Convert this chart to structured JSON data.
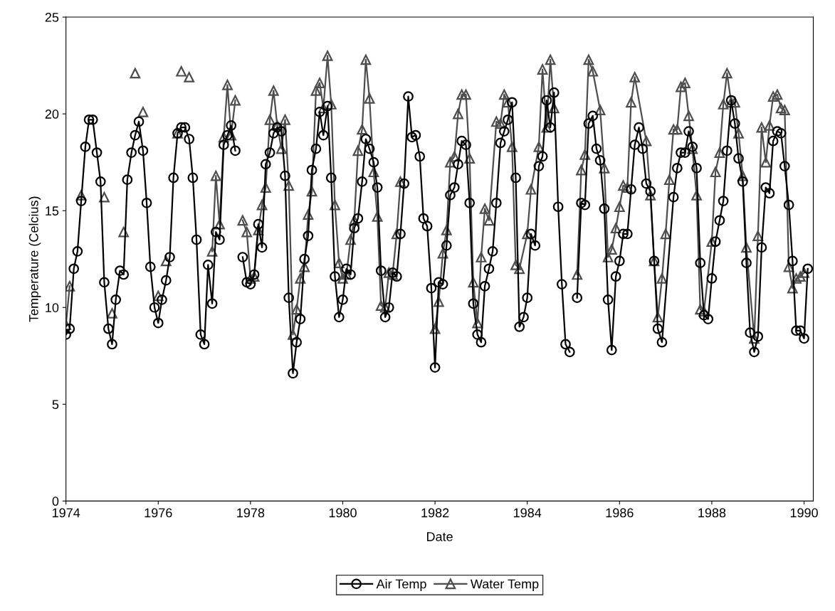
{
  "chart_data": {
    "type": "line",
    "xlabel": "Date",
    "ylabel": "Temperature (Celcius)",
    "xlim": [
      1974,
      1990.2
    ],
    "xticks": [
      1974,
      1976,
      1978,
      1980,
      1982,
      1984,
      1986,
      1988,
      1990
    ],
    "ylim": [
      0,
      25
    ],
    "yticks": [
      0,
      5,
      10,
      15,
      20,
      25
    ],
    "grid": false,
    "legend": "bottom",
    "series": [
      {
        "name": "Air Temp",
        "color": "#000000",
        "marker": "circle",
        "x": [
          1974.0,
          1974.08,
          1974.17,
          1974.25,
          1974.33,
          1974.42,
          1974.5,
          1974.58,
          1974.67,
          1974.75,
          1974.83,
          1974.92,
          1975.0,
          1975.08,
          1975.17,
          1975.25,
          1975.33,
          1975.42,
          1975.5,
          1975.58,
          1975.67,
          1975.75,
          1975.83,
          1975.92,
          1976.0,
          1976.08,
          1976.17,
          1976.25,
          1976.33,
          1976.42,
          1976.5,
          1976.58,
          1976.67,
          1976.75,
          1976.83,
          1976.92,
          1977.0,
          1977.08,
          1977.17,
          1977.25,
          1977.33,
          1977.42,
          1977.5,
          1977.58,
          1977.67,
          1977.75,
          1977.83,
          1977.92,
          1978.0,
          1978.08,
          1978.17,
          1978.25,
          1978.33,
          1978.42,
          1978.5,
          1978.58,
          1978.67,
          1978.75,
          1978.83,
          1978.92,
          1979.0,
          1979.08,
          1979.17,
          1979.25,
          1979.33,
          1979.42,
          1979.5,
          1979.58,
          1979.67,
          1979.75,
          1979.83,
          1979.92,
          1980.0,
          1980.08,
          1980.17,
          1980.25,
          1980.33,
          1980.42,
          1980.5,
          1980.58,
          1980.67,
          1980.75,
          1980.83,
          1980.92,
          1981.0,
          1981.08,
          1981.17,
          1981.25,
          1981.33,
          1981.42,
          1981.5,
          1981.58,
          1981.67,
          1981.75,
          1981.83,
          1981.92,
          1982.0,
          1982.08,
          1982.17,
          1982.25,
          1982.33,
          1982.42,
          1982.5,
          1982.58,
          1982.67,
          1982.75,
          1982.83,
          1982.92,
          1983.0,
          1983.08,
          1983.17,
          1983.25,
          1983.33,
          1983.42,
          1983.5,
          1983.58,
          1983.67,
          1983.75,
          1983.83,
          1983.92,
          1984.0,
          1984.08,
          1984.17,
          1984.25,
          1984.33,
          1984.42,
          1984.5,
          1984.58,
          1984.67,
          1984.75,
          1984.83,
          1984.92,
          1985.0,
          1985.08,
          1985.17,
          1985.25,
          1985.33,
          1985.42,
          1985.5,
          1985.58,
          1985.67,
          1985.75,
          1985.83,
          1985.92,
          1986.0,
          1986.08,
          1986.17,
          1986.25,
          1986.33,
          1986.42,
          1986.5,
          1986.58,
          1986.67,
          1986.75,
          1986.83,
          1986.92,
          1987.17,
          1987.25,
          1987.33,
          1987.42,
          1987.5,
          1987.58,
          1987.67,
          1987.75,
          1987.83,
          1987.92,
          1988.0,
          1988.08,
          1988.17,
          1988.25,
          1988.33,
          1988.42,
          1988.5,
          1988.58,
          1988.67,
          1988.75,
          1988.83,
          1988.92,
          1989.0,
          1989.08,
          1989.17,
          1989.25,
          1989.33,
          1989.42,
          1989.5,
          1989.58,
          1989.67,
          1989.75,
          1989.83,
          1989.92,
          1990.0,
          1990.08
        ],
        "values": [
          8.6,
          8.9,
          12.0,
          12.9,
          15.5,
          18.3,
          19.7,
          19.7,
          18.0,
          16.5,
          11.3,
          8.9,
          8.1,
          10.4,
          11.9,
          11.7,
          16.6,
          18.0,
          18.9,
          19.6,
          18.1,
          15.4,
          12.1,
          10.0,
          9.2,
          10.4,
          11.4,
          12.6,
          16.7,
          19.0,
          19.3,
          19.3,
          18.7,
          16.7,
          13.5,
          8.6,
          8.1,
          12.2,
          10.2,
          13.9,
          13.5,
          18.4,
          18.9,
          19.4,
          18.1,
          null,
          12.6,
          11.3,
          11.2,
          11.7,
          14.3,
          13.1,
          17.4,
          18.0,
          19.0,
          19.3,
          19.1,
          16.8,
          10.5,
          6.6,
          8.2,
          9.4,
          12.5,
          13.7,
          17.1,
          18.2,
          20.1,
          18.9,
          20.4,
          16.7,
          11.6,
          9.5,
          10.4,
          12.0,
          11.7,
          14.1,
          14.6,
          16.5,
          18.7,
          18.2,
          17.5,
          16.2,
          11.9,
          9.5,
          10.0,
          11.8,
          11.6,
          13.8,
          16.4,
          20.9,
          18.8,
          18.9,
          17.8,
          14.6,
          14.2,
          11.0,
          6.9,
          11.3,
          11.2,
          13.2,
          15.8,
          16.2,
          17.4,
          18.6,
          18.4,
          15.4,
          10.2,
          8.6,
          8.2,
          11.1,
          12.0,
          12.9,
          15.4,
          18.5,
          19.1,
          19.7,
          20.6,
          16.7,
          9.0,
          9.5,
          10.5,
          13.8,
          13.2,
          17.3,
          17.8,
          20.7,
          19.3,
          21.1,
          15.2,
          11.2,
          8.1,
          7.7,
          null,
          10.5,
          15.4,
          15.3,
          19.5,
          19.9,
          18.2,
          17.6,
          15.1,
          10.4,
          7.8,
          11.6,
          12.4,
          13.8,
          13.8,
          16.1,
          18.4,
          19.3,
          18.2,
          16.4,
          16.0,
          12.4,
          8.9,
          8.2,
          15.7,
          17.2,
          18.0,
          18.0,
          19.1,
          18.3,
          17.2,
          12.3,
          9.6,
          9.4,
          11.5,
          13.4,
          14.5,
          15.5,
          18.1,
          20.7,
          19.5,
          17.7,
          16.5,
          12.3,
          8.7,
          7.7,
          8.5,
          13.1,
          16.2,
          15.9,
          18.6,
          19.1,
          19.0,
          17.3,
          15.3,
          12.4,
          8.8,
          8.8,
          8.4,
          12.0
        ]
      },
      {
        "name": "Water Temp",
        "color": "#4d4d4d",
        "marker": "triangle",
        "x": [
          1974.0,
          1974.08,
          1974.2,
          1974.33,
          1974.6,
          1974.83,
          1974.9,
          1975.0,
          1975.1,
          1975.25,
          1975.4,
          1975.5,
          1975.6,
          1975.67,
          1975.8,
          1976.0,
          1976.1,
          1976.17,
          1976.3,
          1976.42,
          1976.46,
          1976.5,
          1976.6,
          1976.67,
          1977.0,
          1977.17,
          1977.25,
          1977.33,
          1977.42,
          1977.5,
          1977.58,
          1977.67,
          1977.75,
          1977.83,
          1977.92,
          1978.0,
          1978.08,
          1978.17,
          1978.25,
          1978.33,
          1978.42,
          1978.5,
          1978.58,
          1978.67,
          1978.75,
          1978.83,
          1978.92,
          1979.0,
          1979.08,
          1979.17,
          1979.25,
          1979.33,
          1979.42,
          1979.5,
          1979.58,
          1979.67,
          1979.75,
          1979.83,
          1979.92,
          1980.0,
          1980.08,
          1980.17,
          1980.25,
          1980.33,
          1980.42,
          1980.5,
          1980.58,
          1980.67,
          1980.75,
          1980.83,
          1980.92,
          1981.0,
          1981.08,
          1981.17,
          1981.25,
          1981.5,
          1982.0,
          1982.08,
          1982.17,
          1982.25,
          1982.33,
          1982.42,
          1982.5,
          1982.58,
          1982.67,
          1982.75,
          1982.83,
          1982.92,
          1983.0,
          1983.08,
          1983.17,
          1983.33,
          1983.42,
          1983.5,
          1983.58,
          1983.67,
          1983.75,
          1983.83,
          1984.0,
          1984.08,
          1984.25,
          1984.33,
          1984.42,
          1984.5,
          1984.58,
          1984.8,
          1985.08,
          1985.17,
          1985.25,
          1985.33,
          1985.42,
          1985.58,
          1985.67,
          1985.75,
          1985.83,
          1985.92,
          1986.0,
          1986.08,
          1986.17,
          1986.25,
          1986.33,
          1986.58,
          1986.67,
          1986.75,
          1986.83,
          1986.92,
          1987.0,
          1987.08,
          1987.17,
          1987.25,
          1987.33,
          1987.42,
          1987.5,
          1987.58,
          1987.67,
          1987.75,
          1987.83,
          1988.0,
          1988.08,
          1988.17,
          1988.25,
          1988.33,
          1988.42,
          1988.5,
          1988.58,
          1988.67,
          1988.75,
          1988.92,
          1989.0,
          1989.08,
          1989.17,
          1989.25,
          1989.33,
          1989.42,
          1989.5,
          1989.58,
          1989.67,
          1989.75,
          1989.83,
          1989.92,
          1990.0
        ],
        "values": [
          9.1,
          11.1,
          null,
          15.8,
          null,
          15.7,
          null,
          9.7,
          null,
          13.9,
          null,
          22.1,
          null,
          20.1,
          null,
          10.6,
          null,
          12.4,
          null,
          19.0,
          null,
          22.2,
          null,
          21.9,
          null,
          12.9,
          16.8,
          14.3,
          18.8,
          21.5,
          18.9,
          20.7,
          null,
          14.5,
          13.9,
          11.5,
          11.6,
          14.0,
          15.3,
          16.2,
          19.7,
          21.2,
          19.4,
          18.2,
          19.7,
          16.3,
          8.6,
          9.9,
          11.5,
          12.1,
          14.8,
          16.0,
          21.2,
          21.6,
          20.3,
          23.0,
          20.5,
          15.3,
          12.3,
          11.5,
          11.7,
          13.5,
          14.5,
          18.1,
          19.2,
          22.8,
          20.8,
          17.0,
          14.7,
          10.1,
          10.0,
          11.8,
          11.7,
          13.8,
          16.5,
          null,
          8.9,
          10.3,
          12.8,
          14.0,
          17.5,
          17.8,
          20.0,
          21.0,
          21.0,
          17.7,
          11.3,
          9.2,
          12.6,
          15.1,
          14.5,
          19.6,
          19.5,
          21.0,
          20.6,
          18.3,
          12.2,
          12.0,
          13.8,
          16.1,
          18.3,
          22.3,
          19.3,
          22.8,
          20.3,
          null,
          11.7,
          17.1,
          17.9,
          22.8,
          22.2,
          20.2,
          17.2,
          12.6,
          13.0,
          14.1,
          15.2,
          16.3,
          16.2,
          20.6,
          21.9,
          18.6,
          15.8,
          12.4,
          9.5,
          11.5,
          13.8,
          16.6,
          19.2,
          19.2,
          21.4,
          21.6,
          19.9,
          18.2,
          15.8,
          9.9,
          9.8,
          13.4,
          17.0,
          18.0,
          20.5,
          22.1,
          20.6,
          20.6,
          19.0,
          16.8,
          13.1,
          8.4,
          13.7,
          19.3,
          17.5,
          19.4,
          20.9,
          21.0,
          20.3,
          20.2,
          12.1,
          11.0,
          11.5,
          11.6,
          11.8
        ]
      }
    ]
  }
}
